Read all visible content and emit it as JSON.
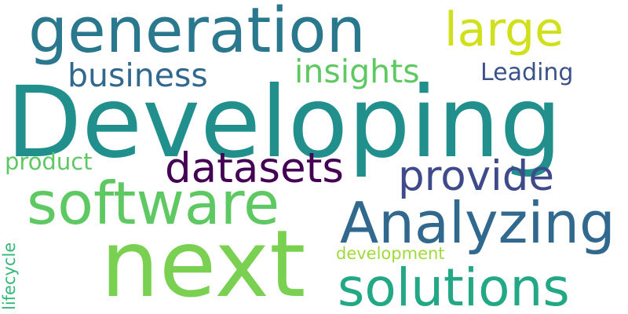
{
  "words": {
    "developing": {
      "text": "Developing",
      "color": "#21908d"
    },
    "generation": {
      "text": "generation",
      "color": "#2a788e"
    },
    "large": {
      "text": "large",
      "color": "#d0e11c"
    },
    "business": {
      "text": "business",
      "color": "#31688e"
    },
    "insights": {
      "text": "insights",
      "color": "#5ec962"
    },
    "leading": {
      "text": "Leading",
      "color": "#3b528b"
    },
    "product": {
      "text": "product",
      "color": "#5ec962"
    },
    "datasets": {
      "text": "datasets",
      "color": "#440154"
    },
    "provide": {
      "text": "provide",
      "color": "#3e4a89"
    },
    "software": {
      "text": "software",
      "color": "#5ec962"
    },
    "analyzing": {
      "text": "Analyzing",
      "color": "#31688e"
    },
    "next": {
      "text": "next",
      "color": "#7ad151"
    },
    "development": {
      "text": "development",
      "color": "#a0da39"
    },
    "solutions": {
      "text": "solutions",
      "color": "#22a884"
    },
    "lifecycle": {
      "text": "lifecycle",
      "color": "#35b779"
    }
  }
}
